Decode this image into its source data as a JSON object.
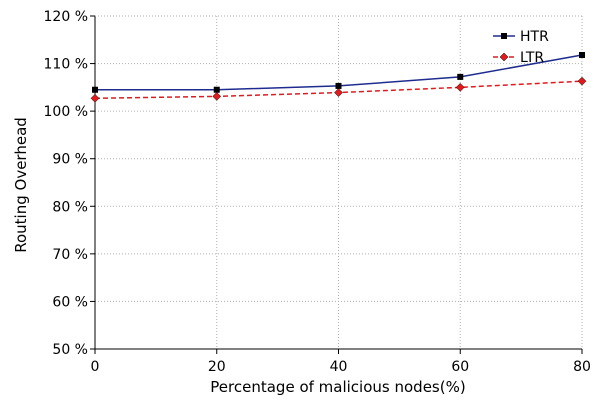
{
  "colors": {
    "htr": "#1f2c8f",
    "ltr": "#e31a1c",
    "grid": "#b0b0b0",
    "axis": "#000000"
  },
  "chart_data": {
    "type": "line",
    "title": "",
    "xlabel": "Percentage of malicious nodes(%)",
    "ylabel": "Routing Overhead",
    "xlim": [
      0,
      80
    ],
    "ylim": [
      50,
      120
    ],
    "x_ticks": [
      0,
      20,
      40,
      60,
      80
    ],
    "x_tick_labels": [
      "0",
      "20",
      "40",
      "60",
      "80"
    ],
    "y_ticks": [
      50,
      60,
      70,
      80,
      90,
      100,
      110,
      120
    ],
    "y_tick_labels": [
      "50 %",
      "60 %",
      "70 %",
      "80 %",
      "90 %",
      "100 %",
      "110 %",
      "120 %"
    ],
    "grid": true,
    "legend_position": "top-right",
    "series": [
      {
        "name": "HTR",
        "line_style": "solid",
        "marker": "square",
        "x": [
          0,
          20,
          40,
          60,
          80
        ],
        "values": [
          104.5,
          104.5,
          105.3,
          107.2,
          111.8
        ]
      },
      {
        "name": "LTR",
        "line_style": "dashed",
        "marker": "diamond",
        "x": [
          0,
          20,
          40,
          60,
          80
        ],
        "values": [
          102.7,
          103.1,
          103.9,
          105,
          106.3
        ]
      }
    ]
  }
}
